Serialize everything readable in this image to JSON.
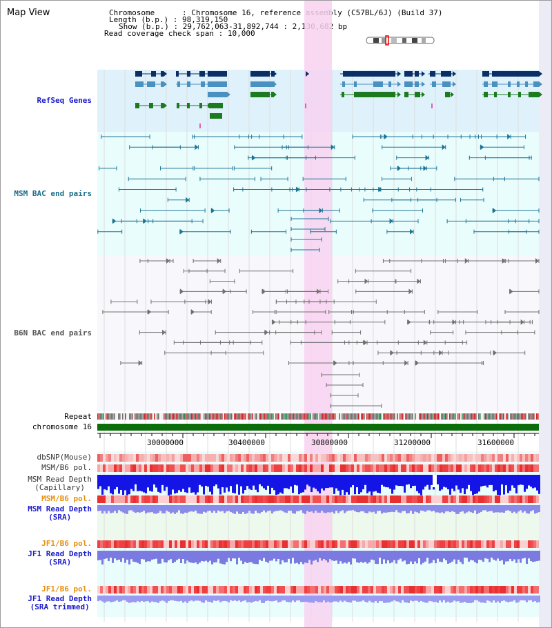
{
  "map_title": "Map View",
  "info": {
    "chromosome_label": "Chromosome",
    "chromosome_value": "Chromosome 16, reference assembly (C57BL/6J) (Build 37)",
    "length_label": "Length (b.p.)",
    "length_value": "98,319,150",
    "show_label": "Show (b.p.)",
    "show_value": "29,762,063-31,892,744 : 2,130,682 bp",
    "coverage_label": "Read coverage check span",
    "coverage_value": "10,000"
  },
  "tracks": {
    "refseq": "RefSeq Genes",
    "msm_bac": "MSM BAC end pairs",
    "b6n_bac": "B6N BAC end pairs",
    "repeat": "Repeat",
    "chromosome": "chromosome 16",
    "dbsnp": "dbSNP(Mouse)",
    "msm_b6_pol_1": "MSM/B6 pol.",
    "msm_read_depth_cap_1": "MSM Read Depth",
    "msm_read_depth_cap_2": "(Capillary)",
    "msm_b6_pol_2": "MSM/B6 pol.",
    "msm_read_depth_sra_1": "MSM Read Depth",
    "msm_read_depth_sra_2": "(SRA)",
    "jf1_b6_pol_1": "JF1/B6 pol.",
    "jf1_read_depth_sra_1": "JF1 Read Depth",
    "jf1_read_depth_sra_2": "(SRA)",
    "jf1_b6_pol_2": "JF1/B6 pol.",
    "jf1_read_depth_trim_1": "JF1 Read Depth",
    "jf1_read_depth_trim_2": "(SRA trimmed)"
  },
  "axis_ticks": [
    "30000000",
    "30400000",
    "30800000",
    "31200000",
    "31600000"
  ],
  "colors": {
    "refseq_bg": "#dff2fb",
    "msm_bg": "#eafdfd",
    "b6n_bg": "#f8f8fc",
    "highlight": "#f8d2f0",
    "label_blue": "#1a1acc",
    "label_teal": "#1a6e8a",
    "label_gray": "#555555",
    "label_orange": "#e89010",
    "gene_dark": "#0b2e66",
    "gene_mid": "#4a90c0",
    "gene_green": "#1e7a1e",
    "msm_line": "#1d7396",
    "b6n_line": "#707070",
    "chrom_green": "#0b6e0b"
  }
}
